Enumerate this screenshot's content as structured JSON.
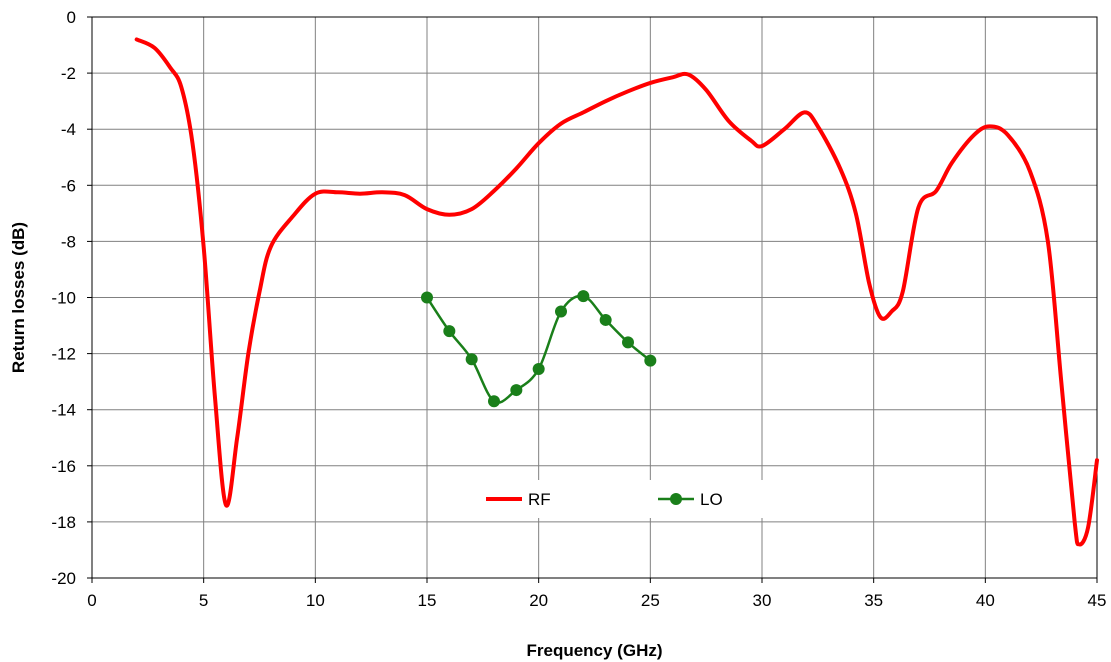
{
  "chart_data": {
    "type": "line",
    "xlabel": "Frequency (GHz)",
    "ylabel": "Return losses (dB)",
    "xlim": [
      0,
      45
    ],
    "ylim": [
      -20,
      0
    ],
    "x_ticks": [
      "0",
      "5",
      "10",
      "15",
      "20",
      "25",
      "30",
      "35",
      "40",
      "45"
    ],
    "y_ticks": [
      "0",
      "-2",
      "-4",
      "-6",
      "-8",
      "-10",
      "-12",
      "-14",
      "-16",
      "-18",
      "-20"
    ],
    "grid": true,
    "legend_position": "bottom-center",
    "series": [
      {
        "name": "RF",
        "color": "#ff0000",
        "marker": "none",
        "x": [
          2.0,
          2.8,
          3.5,
          4.0,
          4.5,
          5.0,
          5.5,
          6.0,
          6.5,
          7.0,
          7.5,
          8.0,
          9.0,
          10.0,
          11.0,
          12.0,
          13.0,
          14.0,
          15.0,
          16.0,
          17.0,
          18.0,
          19.0,
          20.0,
          21.0,
          22.0,
          23.0,
          24.0,
          25.0,
          26.0,
          26.7,
          27.5,
          28.5,
          29.5,
          30.0,
          31.0,
          31.9,
          32.5,
          33.5,
          34.2,
          34.8,
          35.3,
          35.8,
          36.3,
          37.0,
          37.8,
          38.5,
          39.5,
          40.2,
          41.0,
          42.0,
          42.8,
          43.4,
          44.0,
          44.2,
          44.6,
          45.0
        ],
        "values": [
          -0.8,
          -1.1,
          -1.8,
          -2.5,
          -4.5,
          -8.2,
          -13.5,
          -17.4,
          -15.0,
          -12.0,
          -9.8,
          -8.2,
          -7.1,
          -6.3,
          -6.25,
          -6.3,
          -6.25,
          -6.35,
          -6.85,
          -7.05,
          -6.85,
          -6.2,
          -5.4,
          -4.5,
          -3.8,
          -3.4,
          -3.0,
          -2.65,
          -2.35,
          -2.15,
          -2.05,
          -2.6,
          -3.7,
          -4.4,
          -4.6,
          -4.0,
          -3.4,
          -3.9,
          -5.4,
          -7.0,
          -9.5,
          -10.7,
          -10.5,
          -9.8,
          -6.8,
          -6.2,
          -5.2,
          -4.2,
          -3.9,
          -4.2,
          -5.5,
          -8.0,
          -13.0,
          -18.0,
          -18.8,
          -18.2,
          -15.8
        ]
      },
      {
        "name": "LO",
        "color": "#1a7f1a",
        "marker": "circle",
        "x": [
          15,
          16,
          17,
          18,
          19,
          20,
          21,
          22,
          23,
          24,
          25
        ],
        "values": [
          -10.0,
          -11.2,
          -12.2,
          -13.7,
          -13.3,
          -12.55,
          -10.5,
          -9.95,
          -10.8,
          -11.6,
          -12.25
        ]
      }
    ]
  }
}
